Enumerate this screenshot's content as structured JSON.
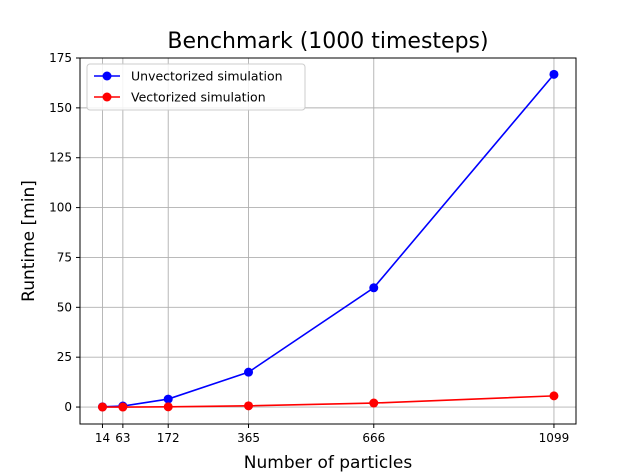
{
  "chart_data": {
    "type": "line",
    "title": "Benchmark (1000 timesteps)",
    "xlabel": "Number of particles",
    "ylabel": "Runtime [min]",
    "x": [
      14,
      63,
      172,
      365,
      666,
      1099
    ],
    "xticks": [
      "14",
      "63",
      "172",
      "365",
      "666",
      "1099"
    ],
    "yticks": [
      "0",
      "25",
      "50",
      "75",
      "100",
      "125",
      "150",
      "175"
    ],
    "ylim": [
      -8.5,
      175
    ],
    "xlim": [
      -40,
      1152
    ],
    "grid": true,
    "legend_position": "upper-left",
    "series": [
      {
        "name": "Unvectorized simulation",
        "color": "#0000ff",
        "values": [
          0.1,
          0.5,
          4.0,
          17.5,
          59.8,
          166.8
        ]
      },
      {
        "name": "Vectorized simulation",
        "color": "#ff0000",
        "values": [
          0.0,
          0.0,
          0.1,
          0.6,
          2.0,
          5.6
        ]
      }
    ]
  }
}
